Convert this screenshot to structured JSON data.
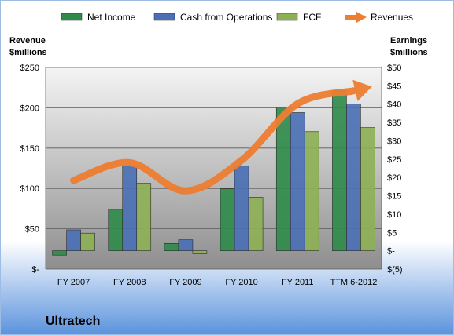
{
  "chart_data": {
    "type": "bar",
    "company": "Ultratech",
    "left_axis_label": [
      "Revenue",
      "$millions"
    ],
    "right_axis_label": [
      "Earnings",
      "$millions"
    ],
    "categories": [
      "FY 2007",
      "FY 2008",
      "FY 2009",
      "FY 2010",
      "FY 2011",
      "TTM 6-2012"
    ],
    "left_axis": {
      "ylim": [
        0,
        250
      ],
      "ticks": [
        0,
        50,
        100,
        150,
        200,
        250
      ],
      "tick_labels": [
        "$-",
        "$50",
        "$100",
        "$150",
        "$200",
        "$250"
      ]
    },
    "right_axis": {
      "ylim": [
        -5,
        50
      ],
      "ticks": [
        -5,
        0,
        5,
        10,
        15,
        20,
        25,
        30,
        35,
        40,
        45,
        50
      ],
      "tick_labels": [
        "$(5)",
        "$-",
        "$5",
        "$10",
        "$15",
        "$20",
        "$25",
        "$30",
        "$35",
        "$40",
        "$45",
        "$50"
      ]
    },
    "series": [
      {
        "name": "Net Income",
        "type": "bar",
        "axis": "right",
        "color": "#2E8B4A",
        "values": [
          -1.2,
          11.3,
          2,
          16.9,
          39.2,
          43.7
        ]
      },
      {
        "name": "Cash from Operations",
        "type": "bar",
        "axis": "right",
        "color": "#4A6FB5",
        "values": [
          5.7,
          23.2,
          3,
          23.1,
          37.7,
          40
        ]
      },
      {
        "name": "FCF",
        "type": "bar",
        "axis": "right",
        "color": "#8DB055",
        "values": [
          4.8,
          18.4,
          -0.8,
          14.6,
          32.5,
          33.6
        ]
      },
      {
        "name": "Revenues",
        "type": "line",
        "axis": "left",
        "color": "#ED7D31",
        "values": [
          110,
          132,
          97,
          135,
          205,
          221
        ]
      }
    ],
    "grid": true,
    "legend_position": "top"
  }
}
